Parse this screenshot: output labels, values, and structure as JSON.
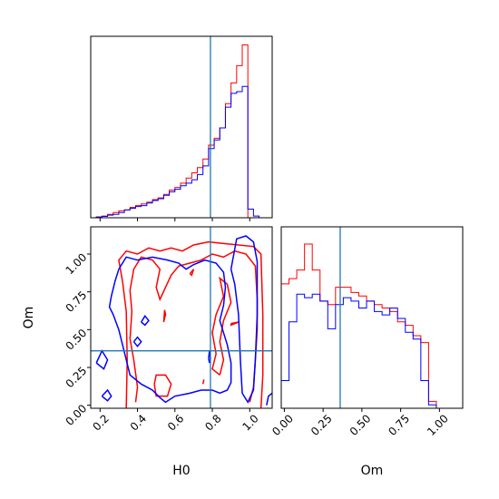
{
  "chart_data": {
    "type": "corner",
    "parameters": [
      "H0",
      "Om"
    ],
    "truth": {
      "H0": 0.79,
      "Om": 0.36
    },
    "colors": {
      "red": "#ff0000",
      "blue": "#0000ff",
      "truth": "#1f77b4"
    },
    "panels": [
      {
        "id": "hist_H0",
        "type": "step-histogram",
        "x_ticks": [
          0.2,
          0.4,
          0.6,
          0.8,
          1.0
        ],
        "xlim": [
          0.15,
          1.12
        ],
        "ylim": [
          0,
          1.05
        ],
        "bins": [
          0.15,
          0.18,
          0.21,
          0.24,
          0.27,
          0.3,
          0.33,
          0.36,
          0.39,
          0.42,
          0.45,
          0.48,
          0.51,
          0.54,
          0.57,
          0.6,
          0.63,
          0.66,
          0.69,
          0.72,
          0.75,
          0.78,
          0.81,
          0.84,
          0.87,
          0.9,
          0.93,
          0.96,
          0.99,
          1.02,
          1.05,
          1.08
        ],
        "series": [
          {
            "name": "red",
            "color": "#ff0000",
            "values": [
              0.0,
              0.005,
              0.01,
              0.02,
              0.03,
              0.04,
              0.045,
              0.06,
              0.07,
              0.08,
              0.09,
              0.105,
              0.115,
              0.135,
              0.16,
              0.175,
              0.2,
              0.23,
              0.26,
              0.29,
              0.34,
              0.42,
              0.46,
              0.52,
              0.66,
              0.78,
              0.88,
              1.0,
              0.0,
              0.0,
              0.0
            ]
          },
          {
            "name": "blue",
            "color": "#0000ff",
            "values": [
              0.0,
              0.003,
              0.008,
              0.015,
              0.02,
              0.03,
              0.045,
              0.055,
              0.065,
              0.07,
              0.085,
              0.1,
              0.11,
              0.13,
              0.15,
              0.165,
              0.185,
              0.2,
              0.22,
              0.25,
              0.3,
              0.4,
              0.45,
              0.52,
              0.64,
              0.72,
              0.73,
              0.76,
              0.05,
              0.01,
              0.0
            ]
          }
        ]
      },
      {
        "id": "contour_H0_Om",
        "type": "contour",
        "x_ticks": [
          0.2,
          0.4,
          0.6,
          0.8,
          1.0
        ],
        "y_ticks": [
          0.0,
          0.25,
          0.5,
          0.75,
          1.0
        ],
        "xlim": [
          0.15,
          1.12
        ],
        "ylim": [
          -0.02,
          1.18
        ],
        "xlabel": "H0",
        "ylabel": "Om",
        "series": [
          {
            "name": "red",
            "color": "#ff0000",
            "contours": [
              [
                [
                  0.34,
                  -0.02
                ],
                [
                  0.345,
                  0.3
                ],
                [
                  0.34,
                  0.62
                ],
                [
                  0.32,
                  0.82
                ],
                [
                  0.3,
                  0.96
                ],
                [
                  0.34,
                  1.02
                ],
                [
                  0.4,
                  1.0
                ],
                [
                  0.46,
                  1.04
                ],
                [
                  0.52,
                  1.02
                ],
                [
                  0.58,
                  1.04
                ],
                [
                  0.64,
                  1.02
                ],
                [
                  0.7,
                  1.06
                ],
                [
                  0.78,
                  1.08
                ],
                [
                  0.86,
                  1.07
                ],
                [
                  0.94,
                  1.06
                ],
                [
                  1.02,
                  1.05
                ],
                [
                  1.06,
                  1.0
                ],
                [
                  1.07,
                  0.6
                ],
                [
                  1.07,
                  0.2
                ],
                [
                  1.06,
                  -0.02
                ]
              ],
              [
                [
                  0.39,
                  0.02
                ],
                [
                  0.4,
                  0.12
                ],
                [
                  0.38,
                  0.3
                ],
                [
                  0.36,
                  0.44
                ],
                [
                  0.37,
                  0.62
                ],
                [
                  0.36,
                  0.76
                ],
                [
                  0.38,
                  0.9
                ],
                [
                  0.42,
                  0.98
                ],
                [
                  0.48,
                  0.96
                ],
                [
                  0.52,
                  0.9
                ],
                [
                  0.5,
                  0.78
                ],
                [
                  0.52,
                  0.7
                ],
                [
                  0.58,
                  0.86
                ],
                [
                  0.62,
                  0.92
                ],
                [
                  0.68,
                  0.94
                ],
                [
                  0.74,
                  0.96
                ],
                [
                  0.8,
                  1.0
                ],
                [
                  0.86,
                  0.98
                ],
                [
                  0.92,
                  1.02
                ],
                [
                  0.98,
                  1.0
                ],
                [
                  1.03,
                  0.92
                ],
                [
                  1.04,
                  0.7
                ],
                [
                  1.04,
                  0.5
                ],
                [
                  1.03,
                  0.3
                ],
                [
                  1.02,
                  0.12
                ],
                [
                  1.0,
                  0.02
                ]
              ],
              [
                [
                  0.49,
                  0.14
                ],
                [
                  0.5,
                  0.06
                ],
                [
                  0.56,
                  0.06
                ],
                [
                  0.58,
                  0.14
                ],
                [
                  0.55,
                  0.2
                ],
                [
                  0.5,
                  0.2
                ],
                [
                  0.49,
                  0.14
                ]
              ],
              [
                [
                  0.84,
                  0.2
                ],
                [
                  0.86,
                  0.3
                ],
                [
                  0.84,
                  0.42
                ],
                [
                  0.86,
                  0.56
                ],
                [
                  0.9,
                  0.68
                ],
                [
                  0.88,
                  0.8
                ],
                [
                  0.84,
                  0.84
                ],
                [
                  0.86,
                  0.72
                ],
                [
                  0.82,
                  0.6
                ],
                [
                  0.8,
                  0.48
                ],
                [
                  0.82,
                  0.34
                ],
                [
                  0.8,
                  0.24
                ],
                [
                  0.84,
                  0.2
                ]
              ],
              [
                [
                  0.9,
                  0.54
                ],
                [
                  0.94,
                  0.55
                ],
                [
                  0.9,
                  0.53
                ],
                [
                  0.9,
                  0.54
                ]
              ],
              [
                [
                  0.54,
                  0.55
                ],
                [
                  0.55,
                  0.6
                ],
                [
                  0.545,
                  0.63
                ],
                [
                  0.54,
                  0.55
                ]
              ],
              [
                [
                  0.75,
                  0.14
                ],
                [
                  0.755,
                  0.17
                ],
                [
                  0.75,
                  0.14
                ]
              ],
              [
                [
                  0.68,
                  0.87
                ],
                [
                  0.7,
                  0.9
                ],
                [
                  0.69,
                  0.86
                ],
                [
                  0.68,
                  0.87
                ]
              ]
            ]
          },
          {
            "name": "blue",
            "color": "#0000ff",
            "contours": [
              [
                [
                  0.3,
                  0.9
                ],
                [
                  0.34,
                  0.98
                ],
                [
                  0.4,
                  0.96
                ],
                [
                  0.48,
                  0.98
                ],
                [
                  0.56,
                  0.96
                ],
                [
                  0.62,
                  0.94
                ],
                [
                  0.66,
                  0.9
                ],
                [
                  0.7,
                  0.93
                ],
                [
                  0.76,
                  0.96
                ],
                [
                  0.82,
                  0.94
                ],
                [
                  0.86,
                  0.88
                ],
                [
                  0.87,
                  0.78
                ],
                [
                  0.86,
                  0.66
                ],
                [
                  0.84,
                  0.56
                ],
                [
                  0.86,
                  0.48
                ],
                [
                  0.88,
                  0.4
                ],
                [
                  0.9,
                  0.28
                ],
                [
                  0.9,
                  0.15
                ],
                [
                  0.88,
                  0.1
                ],
                [
                  0.84,
                  0.08
                ],
                [
                  0.8,
                  0.1
                ],
                [
                  0.74,
                  0.1
                ],
                [
                  0.68,
                  0.08
                ],
                [
                  0.6,
                  0.06
                ],
                [
                  0.55,
                  0.02
                ],
                [
                  0.52,
                  0.05
                ],
                [
                  0.48,
                  0.1
                ],
                [
                  0.42,
                  0.14
                ],
                [
                  0.36,
                  0.2
                ],
                [
                  0.34,
                  0.3
                ],
                [
                  0.32,
                  0.4
                ],
                [
                  0.3,
                  0.5
                ],
                [
                  0.27,
                  0.6
                ],
                [
                  0.25,
                  0.65
                ],
                [
                  0.26,
                  0.72
                ],
                [
                  0.28,
                  0.82
                ],
                [
                  0.3,
                  0.9
                ]
              ],
              [
                [
                  0.9,
                  0.9
                ],
                [
                  0.93,
                  1.1
                ],
                [
                  0.98,
                  1.12
                ],
                [
                  1.02,
                  1.08
                ],
                [
                  1.04,
                  0.95
                ],
                [
                  1.04,
                  0.6
                ],
                [
                  1.03,
                  0.3
                ],
                [
                  1.02,
                  0.1
                ],
                [
                  0.99,
                  0.02
                ],
                [
                  0.96,
                  0.08
                ],
                [
                  0.95,
                  0.3
                ],
                [
                  0.94,
                  0.6
                ],
                [
                  0.92,
                  0.8
                ],
                [
                  0.9,
                  0.9
                ]
              ],
              [
                [
                  0.18,
                  0.28
                ],
                [
                  0.21,
                  0.36
                ],
                [
                  0.24,
                  0.3
                ],
                [
                  0.22,
                  0.24
                ],
                [
                  0.18,
                  0.28
                ]
              ],
              [
                [
                  0.21,
                  0.06
                ],
                [
                  0.24,
                  0.1
                ],
                [
                  0.26,
                  0.06
                ],
                [
                  0.24,
                  0.03
                ],
                [
                  0.21,
                  0.06
                ]
              ],
              [
                [
                  0.38,
                  0.42
                ],
                [
                  0.4,
                  0.45
                ],
                [
                  0.42,
                  0.42
                ],
                [
                  0.4,
                  0.39
                ],
                [
                  0.38,
                  0.42
                ]
              ],
              [
                [
                  0.42,
                  0.55
                ],
                [
                  0.44,
                  0.59
                ],
                [
                  0.46,
                  0.56
                ],
                [
                  0.44,
                  0.53
                ],
                [
                  0.42,
                  0.55
                ]
              ],
              [
                [
                  0.78,
                  0.31
                ],
                [
                  0.785,
                  0.36
                ],
                [
                  0.79,
                  0.31
                ],
                [
                  0.785,
                  0.28
                ],
                [
                  0.78,
                  0.31
                ]
              ],
              [
                [
                  1.09,
                  0.0
                ],
                [
                  1.1,
                  0.06
                ],
                [
                  1.12,
                  0.08
                ]
              ]
            ]
          }
        ]
      },
      {
        "id": "hist_Om",
        "type": "step-histogram",
        "x_ticks": [
          0.0,
          0.25,
          0.5,
          0.75,
          1.0
        ],
        "xlim": [
          -0.02,
          1.15
        ],
        "ylim": [
          0,
          1.05
        ],
        "xlabel": "Om",
        "bins": [
          -0.02,
          0.03,
          0.08,
          0.13,
          0.18,
          0.23,
          0.28,
          0.33,
          0.38,
          0.43,
          0.48,
          0.53,
          0.58,
          0.63,
          0.68,
          0.73,
          0.78,
          0.83,
          0.88,
          0.93,
          0.98,
          1.03,
          1.08
        ],
        "series": [
          {
            "name": "red",
            "color": "#ff0000",
            "values": [
              0.72,
              0.75,
              0.8,
              0.95,
              0.8,
              0.62,
              0.6,
              0.7,
              0.7,
              0.67,
              0.65,
              0.62,
              0.6,
              0.58,
              0.56,
              0.5,
              0.48,
              0.42,
              0.38,
              0.04,
              0.0,
              0.0
            ]
          },
          {
            "name": "blue",
            "color": "#0000ff",
            "values": [
              0.16,
              0.5,
              0.66,
              0.64,
              0.66,
              0.62,
              0.46,
              0.6,
              0.64,
              0.62,
              0.58,
              0.62,
              0.56,
              0.54,
              0.58,
              0.52,
              0.44,
              0.4,
              0.16,
              0.02,
              0.0,
              0.0
            ]
          }
        ]
      }
    ]
  }
}
